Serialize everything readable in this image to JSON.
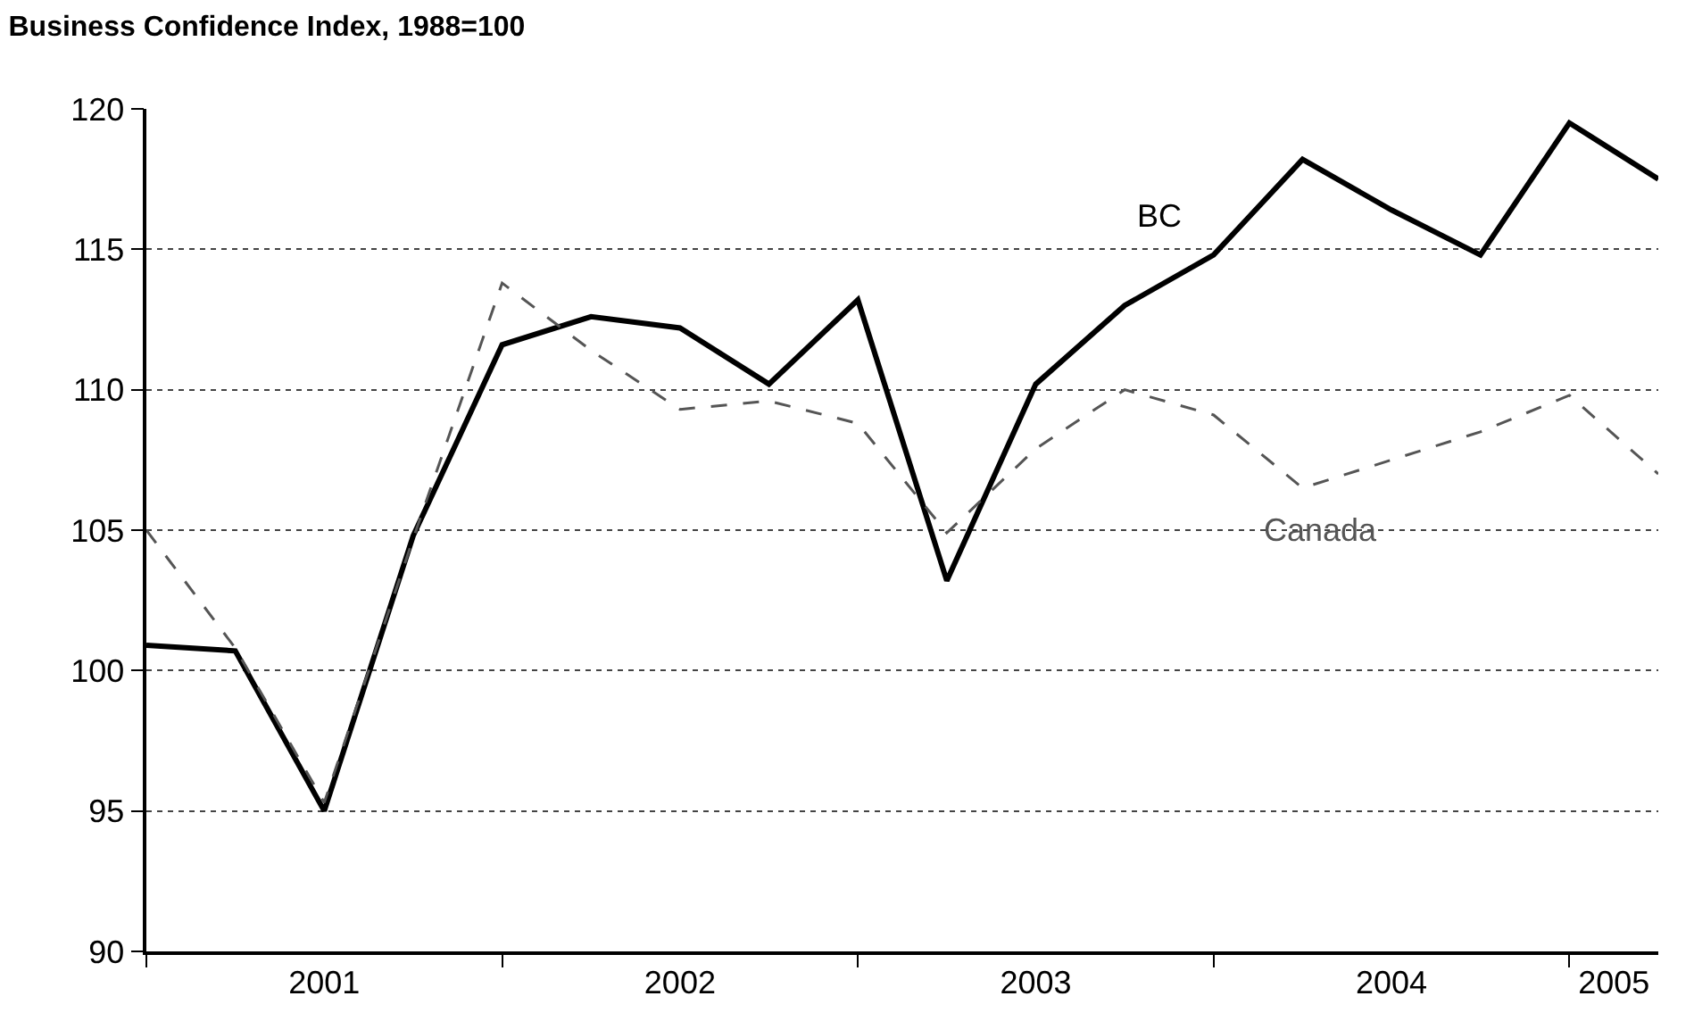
{
  "chart_data": {
    "type": "line",
    "title": "Business Confidence Index, 1988=100",
    "x": [
      2001.0,
      2001.25,
      2001.5,
      2001.75,
      2002.0,
      2002.25,
      2002.5,
      2002.75,
      2003.0,
      2003.25,
      2003.5,
      2003.75,
      2004.0,
      2004.25,
      2004.5,
      2004.75,
      2005.0,
      2005.25
    ],
    "series": [
      {
        "name": "BC",
        "color": "#000000",
        "line_style": "solid",
        "values": [
          100.9,
          100.7,
          95.0,
          104.8,
          111.6,
          112.6,
          112.2,
          110.2,
          113.2,
          103.2,
          110.2,
          113.0,
          114.8,
          118.2,
          116.4,
          114.8,
          119.5,
          117.5
        ]
      },
      {
        "name": "Canada",
        "color": "#555555",
        "line_style": "dashed",
        "values": [
          105.0,
          100.8,
          95.3,
          104.7,
          113.8,
          111.4,
          109.3,
          109.6,
          108.8,
          104.9,
          107.9,
          110.0,
          109.1,
          106.5,
          107.5,
          108.5,
          109.8,
          107.0
        ]
      }
    ],
    "xlim": [
      2001.0,
      2005.25
    ],
    "xticks": [
      {
        "value": 2001,
        "label": null
      },
      {
        "value": 2002,
        "label": null
      },
      {
        "value": 2003,
        "label": null
      },
      {
        "value": 2004,
        "label": null
      },
      {
        "value": 2005,
        "label": null
      },
      {
        "value": 2001.5,
        "label": "2001"
      },
      {
        "value": 2002.5,
        "label": "2002"
      },
      {
        "value": 2003.5,
        "label": "2003"
      },
      {
        "value": 2004.5,
        "label": "2004"
      },
      {
        "value": 2005.125,
        "label": "2005"
      }
    ],
    "ylim": [
      90,
      120
    ],
    "yticks": [
      90,
      95,
      100,
      105,
      110,
      115,
      120
    ],
    "grid": "y",
    "legend": false
  }
}
